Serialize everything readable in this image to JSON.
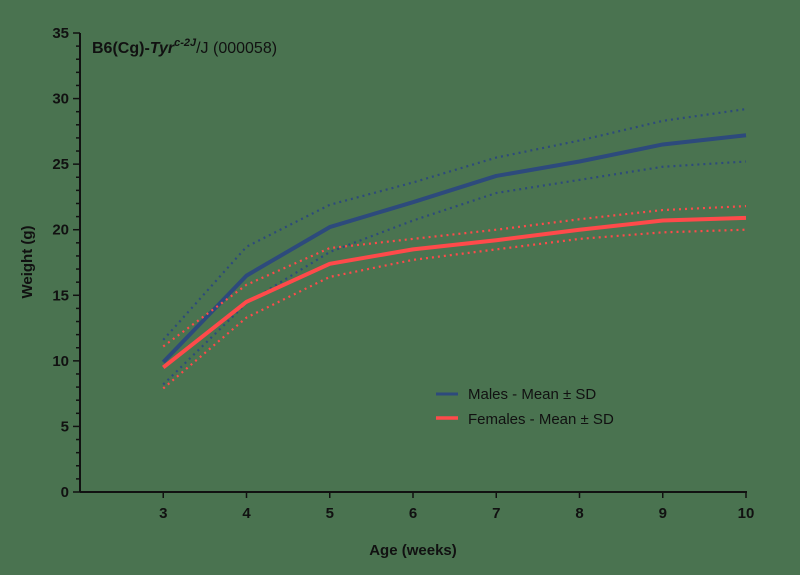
{
  "title": {
    "prefix": "B6(Cg)-",
    "gene": "Tyr",
    "allele": "c-2J",
    "suffix": "/J (000058)"
  },
  "legend": {
    "items": [
      {
        "label": "Males - Mean ± SD",
        "color": "#2d4a7c"
      },
      {
        "label": "Females - Mean ± SD",
        "color": "#ff4a4a"
      }
    ]
  },
  "chart_data": {
    "type": "line",
    "title": "B6(Cg)-Tyr c-2J/J (000058)",
    "xlabel": "Age (weeks)",
    "ylabel": "Weight (g)",
    "x": [
      3,
      4,
      5,
      6,
      7,
      8,
      9,
      10
    ],
    "xlim": [
      2,
      10
    ],
    "ylim": [
      0,
      35
    ],
    "x_ticks": [
      3,
      4,
      5,
      6,
      7,
      8,
      9,
      10
    ],
    "y_ticks": [
      0,
      5,
      10,
      15,
      20,
      25,
      30,
      35
    ],
    "y_minor_tick_step": 1,
    "grid": false,
    "legend_position": "lower right (inside plot)",
    "series": [
      {
        "name": "Males - Mean",
        "color": "#2d4a7c",
        "style": "solid",
        "values": [
          9.9,
          16.5,
          20.2,
          22.1,
          24.1,
          25.2,
          26.5,
          27.2
        ]
      },
      {
        "name": "Males - Mean + SD",
        "color": "#2d4a7c",
        "style": "dotted",
        "values": [
          11.6,
          18.7,
          21.9,
          23.6,
          25.5,
          26.8,
          28.3,
          29.2
        ]
      },
      {
        "name": "Males - Mean - SD",
        "color": "#2d4a7c",
        "style": "dotted",
        "values": [
          8.2,
          14.4,
          18.3,
          20.7,
          22.8,
          23.8,
          24.8,
          25.2
        ]
      },
      {
        "name": "Females - Mean",
        "color": "#ff4a4a",
        "style": "solid",
        "values": [
          9.5,
          14.5,
          17.4,
          18.5,
          19.2,
          20.0,
          20.7,
          20.9
        ]
      },
      {
        "name": "Females - Mean + SD",
        "color": "#ff4a4a",
        "style": "dotted",
        "values": [
          11.1,
          15.8,
          18.6,
          19.3,
          20.0,
          20.8,
          21.5,
          21.8
        ]
      },
      {
        "name": "Females - Mean - SD",
        "color": "#ff4a4a",
        "style": "dotted",
        "values": [
          7.9,
          13.3,
          16.4,
          17.7,
          18.5,
          19.3,
          19.8,
          20.0
        ]
      }
    ]
  }
}
